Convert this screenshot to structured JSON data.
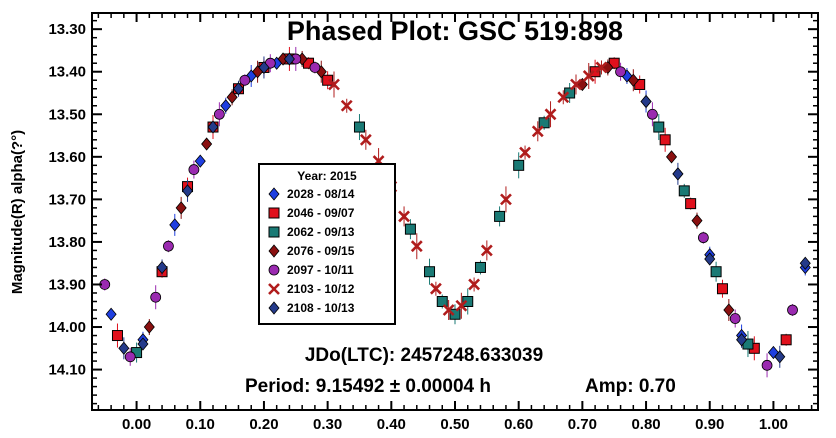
{
  "chart_data": {
    "type": "scatter",
    "title": "Phased Plot: GSC 519:898",
    "ylabel": "Magnitude(R) alpha(?°)",
    "xlim": [
      -0.07,
      1.07
    ],
    "ylim": [
      14.195,
      13.262
    ],
    "y_inverted": true,
    "x_ticks": [
      0.0,
      0.1,
      0.2,
      0.3,
      0.4,
      0.5,
      0.6,
      0.7,
      0.8,
      0.9,
      1.0
    ],
    "x_tick_labels": [
      "0.00",
      "0.10",
      "0.20",
      "0.30",
      "0.40",
      "0.50",
      "0.60",
      "0.70",
      "0.80",
      "0.90",
      "1.00"
    ],
    "y_ticks": [
      13.3,
      13.4,
      13.5,
      13.6,
      13.7,
      13.8,
      13.9,
      14.0,
      14.1
    ],
    "y_tick_labels": [
      "13.30",
      "13.40",
      "13.50",
      "13.60",
      "13.70",
      "13.80",
      "13.90",
      "14.00",
      "14.10"
    ],
    "grid": false,
    "legend_position": "center-left",
    "legend_title": "Year: 2015",
    "annotations": {
      "jdo": "JDo(LTC): 2457248.633039",
      "period": "Period: 9.15492 ± 0.00004 h",
      "amp": "Amp: 0.70"
    },
    "period_hours": 9.15492,
    "period_uncertainty_hours": 4e-05,
    "amplitude_mag": 0.7,
    "series": [
      {
        "name": "2028 - 08/14",
        "color": "#1f3fe0",
        "marker": "diamond",
        "points": [
          [
            -0.04,
            13.97
          ],
          [
            0.01,
            14.03
          ],
          [
            0.06,
            13.76
          ],
          [
            0.1,
            13.61
          ],
          [
            0.14,
            13.48
          ],
          [
            0.18,
            13.41
          ],
          [
            0.22,
            13.38
          ],
          [
            0.77,
            13.41
          ],
          [
            0.8,
            13.47
          ],
          [
            0.85,
            13.64
          ],
          [
            0.9,
            13.83
          ],
          [
            0.95,
            14.02
          ],
          [
            1.0,
            14.06
          ],
          [
            1.05,
            13.86
          ]
        ]
      },
      {
        "name": "2046 - 09/07",
        "color": "#e0101c",
        "marker": "square",
        "points": [
          [
            -0.03,
            14.02
          ],
          [
            0.04,
            13.87
          ],
          [
            0.08,
            13.67
          ],
          [
            0.12,
            13.53
          ],
          [
            0.16,
            13.44
          ],
          [
            0.2,
            13.39
          ],
          [
            0.24,
            13.37
          ],
          [
            0.27,
            13.38
          ],
          [
            0.3,
            13.42
          ],
          [
            0.72,
            13.4
          ],
          [
            0.75,
            13.38
          ],
          [
            0.79,
            13.43
          ],
          [
            0.83,
            13.56
          ],
          [
            0.87,
            13.71
          ],
          [
            0.92,
            13.91
          ],
          [
            0.97,
            14.05
          ],
          [
            1.02,
            14.03
          ]
        ]
      },
      {
        "name": "2062 - 09/13",
        "color": "#1a7a75",
        "marker": "square",
        "points": [
          [
            0.0,
            14.06
          ],
          [
            0.35,
            13.53
          ],
          [
            0.39,
            13.64
          ],
          [
            0.43,
            13.77
          ],
          [
            0.46,
            13.87
          ],
          [
            0.48,
            13.94
          ],
          [
            0.5,
            13.97
          ],
          [
            0.52,
            13.94
          ],
          [
            0.54,
            13.86
          ],
          [
            0.57,
            13.74
          ],
          [
            0.6,
            13.62
          ],
          [
            0.64,
            13.52
          ],
          [
            0.68,
            13.45
          ],
          [
            0.82,
            13.53
          ],
          [
            0.86,
            13.68
          ],
          [
            0.91,
            13.87
          ],
          [
            0.96,
            14.04
          ]
        ]
      },
      {
        "name": "2076 - 09/15",
        "color": "#8a1010",
        "marker": "diamond",
        "points": [
          [
            0.02,
            14.0
          ],
          [
            0.07,
            13.72
          ],
          [
            0.11,
            13.57
          ],
          [
            0.15,
            13.46
          ],
          [
            0.19,
            13.4
          ],
          [
            0.23,
            13.37
          ],
          [
            0.26,
            13.37
          ],
          [
            0.29,
            13.4
          ],
          [
            0.7,
            13.43
          ],
          [
            0.74,
            13.39
          ],
          [
            0.78,
            13.42
          ],
          [
            0.84,
            13.6
          ],
          [
            0.88,
            13.75
          ],
          [
            0.93,
            13.96
          ]
        ]
      },
      {
        "name": "2097 - 10/11",
        "color": "#9a2ab0",
        "marker": "circle",
        "points": [
          [
            -0.05,
            13.9
          ],
          [
            -0.01,
            14.07
          ],
          [
            0.03,
            13.93
          ],
          [
            0.05,
            13.81
          ],
          [
            0.09,
            13.63
          ],
          [
            0.13,
            13.5
          ],
          [
            0.17,
            13.42
          ],
          [
            0.21,
            13.38
          ],
          [
            0.25,
            13.37
          ],
          [
            0.28,
            13.39
          ],
          [
            0.76,
            13.4
          ],
          [
            0.81,
            13.5
          ],
          [
            0.89,
            13.79
          ],
          [
            0.94,
            13.98
          ],
          [
            0.99,
            14.09
          ],
          [
            1.03,
            13.96
          ]
        ]
      },
      {
        "name": "2103 - 10/12",
        "color": "#b01c1c",
        "marker": "cross",
        "points": [
          [
            0.31,
            13.43
          ],
          [
            0.33,
            13.48
          ],
          [
            0.36,
            13.56
          ],
          [
            0.38,
            13.61
          ],
          [
            0.4,
            13.67
          ],
          [
            0.42,
            13.74
          ],
          [
            0.44,
            13.81
          ],
          [
            0.47,
            13.91
          ],
          [
            0.49,
            13.96
          ],
          [
            0.51,
            13.95
          ],
          [
            0.53,
            13.9
          ],
          [
            0.55,
            13.82
          ],
          [
            0.58,
            13.7
          ],
          [
            0.61,
            13.59
          ],
          [
            0.63,
            13.54
          ],
          [
            0.65,
            13.5
          ],
          [
            0.67,
            13.46
          ],
          [
            0.69,
            13.43
          ],
          [
            0.71,
            13.41
          ],
          [
            0.73,
            13.39
          ]
        ]
      },
      {
        "name": "2108 - 10/13",
        "color": "#243a8a",
        "marker": "diamond",
        "points": [
          [
            -0.02,
            14.05
          ],
          [
            0.01,
            14.04
          ],
          [
            0.04,
            13.86
          ],
          [
            0.08,
            13.68
          ],
          [
            0.12,
            13.53
          ],
          [
            0.16,
            13.44
          ],
          [
            0.2,
            13.39
          ],
          [
            0.24,
            13.37
          ],
          [
            0.8,
            13.47
          ],
          [
            0.85,
            13.64
          ],
          [
            0.9,
            13.84
          ],
          [
            0.95,
            14.03
          ],
          [
            1.01,
            14.07
          ],
          [
            1.05,
            13.85
          ]
        ]
      }
    ]
  }
}
